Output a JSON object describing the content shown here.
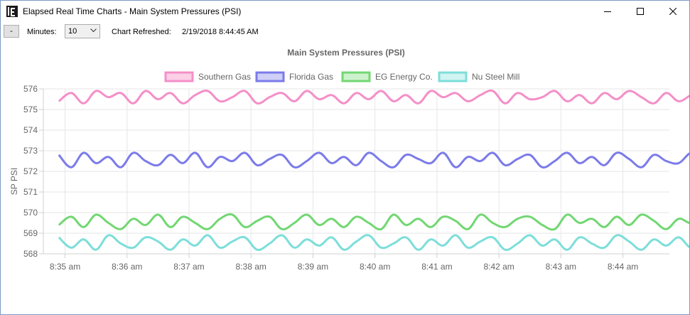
{
  "window": {
    "title": "Elapsed Real Time Charts - Main System Pressures (PSI)"
  },
  "toolbar": {
    "minus_label": "-",
    "minutes_label": "Minutes:",
    "minutes_value": "10",
    "refreshed_label": "Chart Refreshed:",
    "refreshed_value": "2/19/2018 8:44:45 AM"
  },
  "chart_data": {
    "type": "line",
    "title": "Main System Pressures (PSI)",
    "xlabel": "",
    "ylabel": "SP PSI",
    "ylim": [
      568,
      576
    ],
    "yticks": [
      "568",
      "569",
      "570",
      "571",
      "572",
      "573",
      "574",
      "575",
      "576"
    ],
    "xticks": [
      "8:35 am",
      "8:36 am",
      "8:37 am",
      "8:38 am",
      "8:39 am",
      "8:40 am",
      "8:41 am",
      "8:42 am",
      "8:43 am",
      "8:44 am"
    ],
    "grid": true,
    "legend_position": "top",
    "x_start_minute": -0.1,
    "x_step_minutes": 0.2,
    "series": [
      {
        "name": "Southern Gas",
        "color": "#f48fc8",
        "fill": "#fcd0e7",
        "values": [
          575.4,
          575.8,
          575.3,
          575.9,
          575.6,
          575.8,
          575.3,
          575.9,
          575.5,
          575.8,
          575.3,
          575.7,
          575.9,
          575.4,
          575.6,
          575.9,
          575.3,
          575.6,
          575.8,
          575.4,
          575.9,
          575.5,
          575.7,
          575.3,
          575.8,
          575.5,
          575.9,
          575.4,
          575.7,
          575.3,
          575.9,
          575.6,
          575.8,
          575.4,
          575.7,
          575.9,
          575.3,
          575.8,
          575.5,
          575.6,
          575.9,
          575.4,
          575.7,
          575.3,
          575.8,
          575.5,
          575.9,
          575.6,
          575.3,
          575.8,
          575.4,
          575.7,
          575.9,
          575.5,
          575.2,
          575.4,
          575.5
        ]
      },
      {
        "name": "Florida Gas",
        "color": "#7b7bea",
        "fill": "#cfcff7",
        "values": [
          572.8,
          572.2,
          572.9,
          572.4,
          572.7,
          572.2,
          572.9,
          572.5,
          572.3,
          572.8,
          572.4,
          572.9,
          572.2,
          572.7,
          572.5,
          572.9,
          572.3,
          572.6,
          572.8,
          572.2,
          572.5,
          572.9,
          572.4,
          572.7,
          572.3,
          572.9,
          572.5,
          572.2,
          572.8,
          572.6,
          572.4,
          572.9,
          572.2,
          572.7,
          572.5,
          572.9,
          572.3,
          572.6,
          572.8,
          572.2,
          572.5,
          572.9,
          572.4,
          572.7,
          572.3,
          572.9,
          572.6,
          572.2,
          572.8,
          572.5,
          572.4,
          572.9,
          572.7,
          572.2,
          572.5,
          572.8,
          572.6
        ]
      },
      {
        "name": "EG Energy Co.",
        "color": "#72d772",
        "fill": "#cdf1cd",
        "values": [
          569.4,
          569.8,
          569.3,
          569.9,
          569.5,
          569.2,
          569.7,
          569.4,
          569.9,
          569.3,
          569.8,
          569.5,
          569.2,
          569.7,
          569.9,
          569.3,
          569.6,
          569.8,
          569.2,
          569.5,
          569.9,
          569.4,
          569.7,
          569.3,
          569.8,
          569.5,
          569.2,
          569.9,
          569.4,
          569.7,
          569.3,
          569.8,
          569.6,
          569.2,
          569.9,
          569.5,
          569.3,
          569.7,
          569.8,
          569.4,
          569.2,
          569.9,
          569.5,
          569.7,
          569.3,
          569.8,
          569.4,
          569.9,
          569.6,
          569.2,
          569.7,
          569.5,
          569.9,
          569.3,
          569.8,
          569.4,
          569.5
        ]
      },
      {
        "name": "Nu Steel Mill",
        "color": "#7dded9",
        "fill": "#d0f4f2",
        "values": [
          568.8,
          568.3,
          568.7,
          568.2,
          568.9,
          568.5,
          568.3,
          568.8,
          568.6,
          568.2,
          568.7,
          568.4,
          568.9,
          568.3,
          568.6,
          568.8,
          568.2,
          568.5,
          568.9,
          568.3,
          568.7,
          568.4,
          568.8,
          568.2,
          568.6,
          568.9,
          568.3,
          568.5,
          568.8,
          568.2,
          568.7,
          568.4,
          568.9,
          568.3,
          568.6,
          568.8,
          568.2,
          568.5,
          568.9,
          568.4,
          568.7,
          568.2,
          568.8,
          568.5,
          568.3,
          568.9,
          568.6,
          568.2,
          568.7,
          568.4,
          568.8,
          568.3,
          568.6,
          568.9,
          568.2,
          568.7,
          568.6
        ]
      }
    ]
  }
}
